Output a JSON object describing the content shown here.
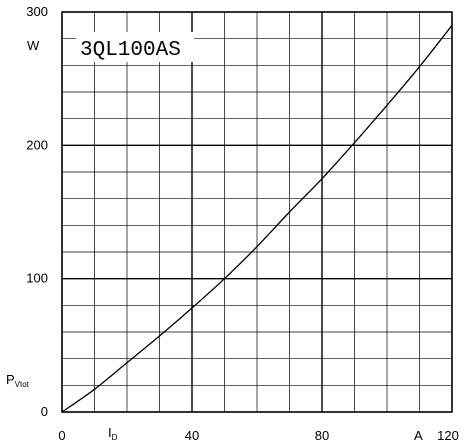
{
  "chart_data": {
    "type": "line",
    "title": "3QL100AS",
    "xlabel": {
      "main": "I",
      "sub": "D",
      "unit": "A"
    },
    "ylabel": {
      "main": "P",
      "sub": "Vtot",
      "unit": "W"
    },
    "xlim": [
      0,
      120
    ],
    "ylim": [
      0,
      300
    ],
    "x_ticks": [
      "0",
      "40",
      "80",
      "120"
    ],
    "y_ticks": [
      "0",
      "100",
      "200",
      "300"
    ],
    "grid": true,
    "series": [
      {
        "x": [
          0,
          10,
          20,
          30,
          40,
          50,
          60,
          70,
          80,
          90,
          100,
          110,
          120
        ],
        "y": [
          0,
          17,
          37,
          57,
          78,
          100,
          124,
          150,
          175,
          202,
          230,
          259,
          290
        ]
      }
    ]
  }
}
